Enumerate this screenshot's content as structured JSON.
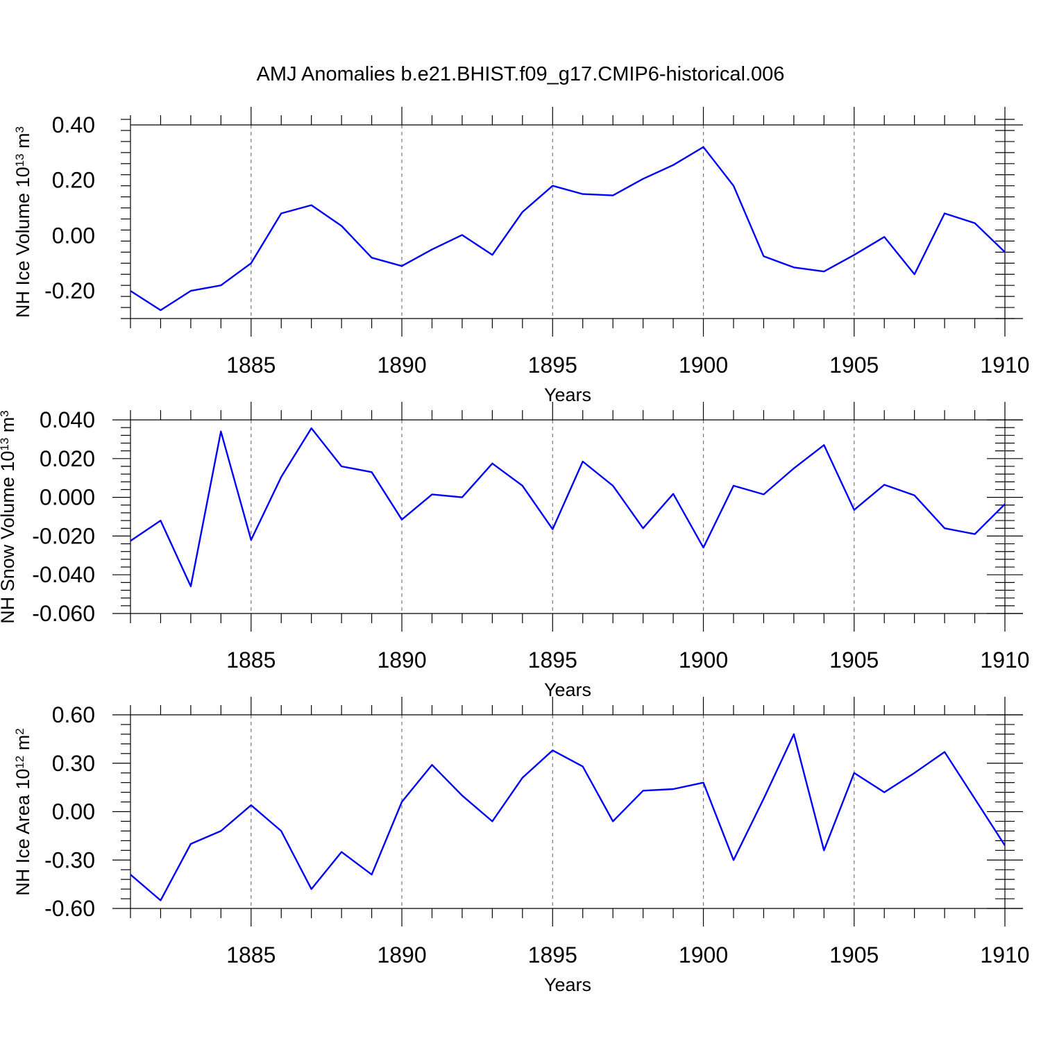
{
  "figure": {
    "title": "AMJ Anomalies b.e21.BHIST.f09_g17.CMIP6-historical.006",
    "line_color": "#0000ff"
  },
  "chart_data": [
    {
      "type": "line",
      "title": "AMJ Anomalies b.e21.BHIST.f09_g17.CMIP6-historical.006",
      "xlabel": "Years",
      "ylabel": {
        "base": "NH Ice Volume 10",
        "exp": "13",
        "unit": " m",
        "unit_exp": "3"
      },
      "xlim": [
        1881,
        1910
      ],
      "ylim": [
        -0.3,
        0.4
      ],
      "yticks": [
        -0.2,
        0.0,
        0.2,
        0.4
      ],
      "ytick_labels": [
        "-0.20",
        "0.00",
        "0.20",
        "0.40"
      ],
      "xticks": [
        1885,
        1890,
        1895,
        1900,
        1905,
        1910
      ],
      "xtick_labels": [
        "1885",
        "1890",
        "1895",
        "1900",
        "1905",
        "1910"
      ],
      "grid_x": [
        1885,
        1890,
        1895,
        1900,
        1905
      ],
      "series": [
        {
          "name": "NH Ice Volume",
          "x": [
            1881,
            1882,
            1883,
            1884,
            1885,
            1886,
            1887,
            1888,
            1889,
            1890,
            1891,
            1892,
            1893,
            1894,
            1895,
            1896,
            1897,
            1898,
            1899,
            1900,
            1901,
            1902,
            1903,
            1904,
            1905,
            1906,
            1907,
            1908,
            1909,
            1910
          ],
          "values": [
            -0.2,
            -0.27,
            -0.2,
            -0.18,
            -0.1,
            0.08,
            0.11,
            0.035,
            -0.08,
            -0.11,
            -0.05,
            0.002,
            -0.07,
            0.085,
            0.18,
            0.15,
            0.145,
            0.205,
            0.255,
            0.32,
            0.18,
            -0.075,
            -0.115,
            -0.13,
            -0.07,
            -0.005,
            -0.14,
            0.08,
            0.045,
            -0.06
          ]
        }
      ]
    },
    {
      "type": "line",
      "title": "",
      "xlabel": "Years",
      "ylabel": {
        "base": "NH Snow Volume 10",
        "exp": "13",
        "unit": " m",
        "unit_exp": "3"
      },
      "xlim": [
        1881,
        1910
      ],
      "ylim": [
        -0.06,
        0.04
      ],
      "yticks": [
        -0.06,
        -0.04,
        -0.02,
        0.0,
        0.02,
        0.04
      ],
      "ytick_labels": [
        "-0.060",
        "-0.040",
        "-0.020",
        "0.000",
        "0.020",
        "0.040"
      ],
      "xticks": [
        1885,
        1890,
        1895,
        1900,
        1905,
        1910
      ],
      "xtick_labels": [
        "1885",
        "1890",
        "1895",
        "1900",
        "1905",
        "1910"
      ],
      "grid_x": [
        1885,
        1890,
        1895,
        1900,
        1905
      ],
      "series": [
        {
          "name": "NH Snow Volume",
          "x": [
            1881,
            1882,
            1883,
            1884,
            1885,
            1886,
            1887,
            1888,
            1889,
            1890,
            1891,
            1892,
            1893,
            1894,
            1895,
            1896,
            1897,
            1898,
            1899,
            1900,
            1901,
            1902,
            1903,
            1904,
            1905,
            1906,
            1907,
            1908,
            1909,
            1910
          ],
          "values": [
            -0.0225,
            -0.012,
            -0.046,
            0.034,
            -0.022,
            0.0105,
            0.0357,
            0.016,
            0.013,
            -0.0115,
            0.0015,
            0.0,
            0.0175,
            0.006,
            -0.0165,
            0.0185,
            0.006,
            -0.016,
            0.0018,
            -0.026,
            0.006,
            0.0015,
            0.015,
            0.027,
            -0.0065,
            0.0065,
            0.001,
            -0.016,
            -0.019,
            -0.0035
          ]
        }
      ]
    },
    {
      "type": "line",
      "title": "",
      "xlabel": "Years",
      "ylabel": {
        "base": "NH Ice Area 10",
        "exp": "12",
        "unit": " m",
        "unit_exp": "2"
      },
      "xlim": [
        1881,
        1910
      ],
      "ylim": [
        -0.6,
        0.6
      ],
      "yticks": [
        -0.6,
        -0.3,
        0.0,
        0.3,
        0.6
      ],
      "ytick_labels": [
        "-0.60",
        "-0.30",
        "0.00",
        "0.30",
        "0.60"
      ],
      "xticks": [
        1885,
        1890,
        1895,
        1900,
        1905,
        1910
      ],
      "xtick_labels": [
        "1885",
        "1890",
        "1895",
        "1900",
        "1905",
        "1910"
      ],
      "grid_x": [
        1885,
        1890,
        1895,
        1900,
        1905
      ],
      "series": [
        {
          "name": "NH Ice Area",
          "x": [
            1881,
            1882,
            1883,
            1884,
            1885,
            1886,
            1887,
            1888,
            1889,
            1890,
            1891,
            1892,
            1893,
            1894,
            1895,
            1896,
            1897,
            1898,
            1899,
            1900,
            1901,
            1902,
            1903,
            1904,
            1905,
            1906,
            1907,
            1908,
            1909,
            1910
          ],
          "values": [
            -0.39,
            -0.55,
            -0.2,
            -0.12,
            0.04,
            -0.12,
            -0.48,
            -0.25,
            -0.39,
            0.06,
            0.29,
            0.1,
            -0.06,
            0.21,
            0.38,
            0.28,
            -0.06,
            0.13,
            0.14,
            0.18,
            -0.3,
            0.08,
            0.48,
            -0.24,
            0.24,
            0.12,
            0.24,
            0.37,
            0.08,
            -0.21
          ]
        }
      ]
    }
  ]
}
